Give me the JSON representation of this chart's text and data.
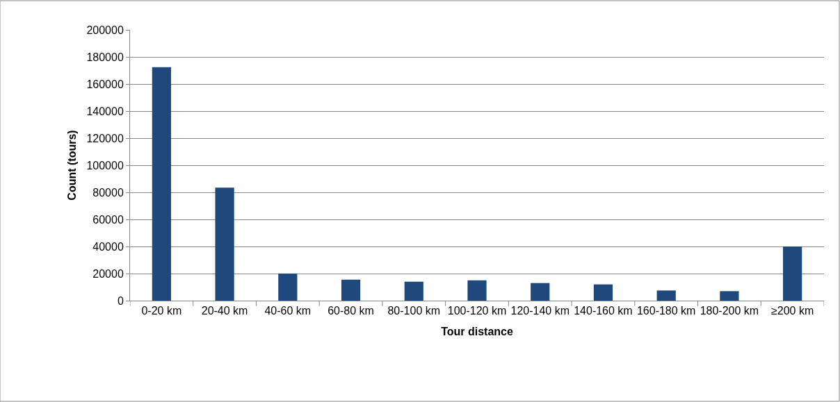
{
  "chart_data": {
    "type": "bar",
    "xlabel": "Tour distance",
    "ylabel": "Count (tours)",
    "categories": [
      "0-20 km",
      "20-40 km",
      "40-60 km",
      "60-80 km",
      "80-100 km",
      "100-120 km",
      "120-140 km",
      "140-160 km",
      "160-180 km",
      "180-200 km",
      "≥200 km"
    ],
    "values": [
      172500,
      83500,
      20000,
      15500,
      14000,
      15000,
      13000,
      12000,
      7500,
      7000,
      40000
    ],
    "color": "#1f497d",
    "ylim": [
      0,
      200000
    ],
    "yticks": [
      0,
      20000,
      40000,
      60000,
      80000,
      100000,
      120000,
      140000,
      160000,
      180000,
      200000
    ],
    "grid": "y",
    "legend": false
  }
}
